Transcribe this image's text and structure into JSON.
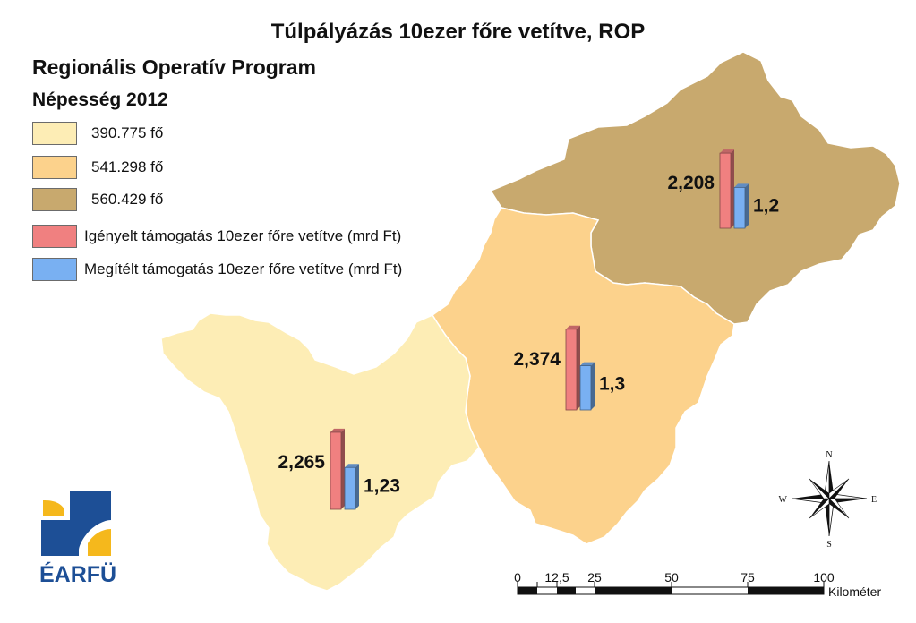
{
  "title": "Túlpályázás 10ezer főre vetítve, ROP",
  "legend": {
    "heading": "Regionális Operatív Program",
    "subheading": "Népesség 2012",
    "population_classes": [
      {
        "label": "390.775 fő",
        "color": "#fdedb5"
      },
      {
        "label": "541.298 fő",
        "color": "#fcd28c"
      },
      {
        "label": "560.429 fő",
        "color": "#c8a96e"
      }
    ],
    "bar_series": [
      {
        "label": "Igényelt támogatás 10ezer főre vetítve (mrd Ft)",
        "color": "#f08080"
      },
      {
        "label": "Megítélt támogatás 10ezer főre vetítve (mrd Ft)",
        "color": "#79b0f2"
      }
    ]
  },
  "regions": [
    {
      "population_class": 0,
      "requested": 2.265,
      "requested_label": "2,265",
      "awarded": 1.23,
      "awarded_label": "1,23"
    },
    {
      "population_class": 1,
      "requested": 2.374,
      "requested_label": "2,374",
      "awarded": 1.3,
      "awarded_label": "1,3"
    },
    {
      "population_class": 2,
      "requested": 2.208,
      "requested_label": "2,208",
      "awarded": 1.2,
      "awarded_label": "1,2"
    }
  ],
  "compass": {
    "n": "N",
    "s": "S",
    "e": "E",
    "w": "W"
  },
  "scale_bar": {
    "ticks": [
      "0",
      "12,5",
      "25",
      "50",
      "75",
      "100"
    ],
    "unit": "Kilométer"
  },
  "logo": {
    "text": "ÉARFÜ",
    "colors": [
      "#1d4f96",
      "#f5b81c"
    ]
  }
}
